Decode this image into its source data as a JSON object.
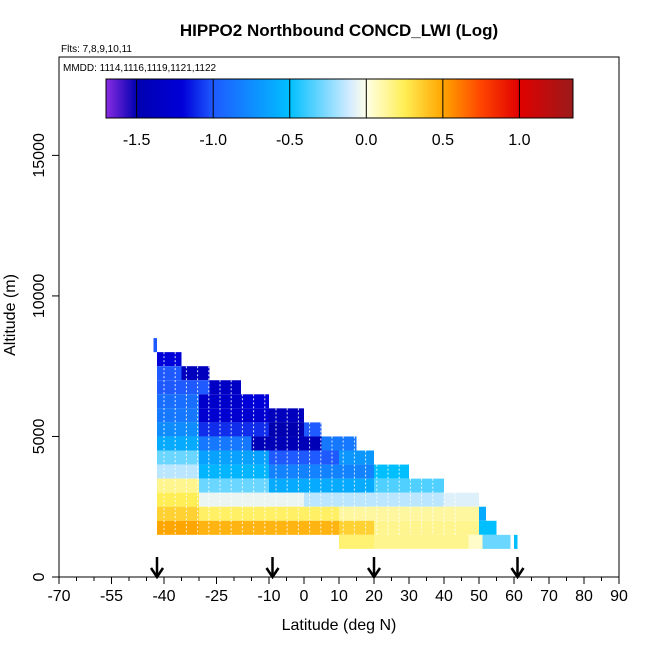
{
  "chart_data": {
    "type": "heatmap",
    "title": "HIPPO2 Northbound CONCD_LWI (Log)",
    "flights_label": "Flts: 7,8,9,10,11",
    "dates_label": "MMDD: 1114,1116,1119,1121,1122",
    "xlabel": "Latitude (deg N)",
    "ylabel": "Altitude (m)",
    "xlim": [
      -70,
      90
    ],
    "ylim": [
      0,
      18500
    ],
    "x_ticks": [
      -70,
      -55,
      -40,
      -25,
      -10,
      0,
      10,
      20,
      30,
      40,
      50,
      60,
      70,
      80,
      90
    ],
    "x_tick_labels": [
      "-70",
      "-55",
      "-40",
      "-25",
      "-10",
      "0",
      "10",
      "20",
      "30",
      "40",
      "50",
      "60",
      "70",
      "80",
      "90"
    ],
    "x_minor_ticks": [
      -65,
      -60,
      -50,
      -45,
      -35,
      -30,
      -20,
      -15,
      -5,
      5,
      15,
      25,
      35,
      45,
      55,
      65,
      75,
      85
    ],
    "y_ticks": [
      0,
      5000,
      10000,
      15000
    ],
    "y_tick_labels": [
      "0",
      "5000",
      "10000",
      "15000"
    ],
    "colorbar": {
      "min": -1.7,
      "max": 1.35,
      "ticks": [
        -1.5,
        -1.0,
        -0.5,
        0.0,
        0.5,
        1.0
      ],
      "tick_labels": [
        "-1.5",
        "-1.0",
        "-0.5",
        "0.0",
        "0.5",
        "1.0"
      ],
      "stops": [
        {
          "v": -1.7,
          "c": "#8a2be2"
        },
        {
          "v": -1.5,
          "c": "#0000b0"
        },
        {
          "v": -1.2,
          "c": "#0000d8"
        },
        {
          "v": -1.0,
          "c": "#1e5aff"
        },
        {
          "v": -0.5,
          "c": "#00bfff"
        },
        {
          "v": -0.1,
          "c": "#d6ecff"
        },
        {
          "v": 0.0,
          "c": "#ffffe6"
        },
        {
          "v": 0.25,
          "c": "#ffee55"
        },
        {
          "v": 0.5,
          "c": "#ffa500"
        },
        {
          "v": 0.75,
          "c": "#ff4500"
        },
        {
          "v": 1.0,
          "c": "#e00000"
        },
        {
          "v": 1.35,
          "c": "#9b1a1a"
        }
      ]
    },
    "flight_markers_lat": [
      -42,
      -9,
      20,
      61
    ],
    "cells": [
      {
        "x0": -43,
        "x1": -42,
        "y0": 8000,
        "y1": 8500,
        "v": -1.0
      },
      {
        "x0": -42,
        "x1": -35,
        "y0": 7500,
        "y1": 8000,
        "v": -1.2
      },
      {
        "x0": -42,
        "x1": -35,
        "y0": 7000,
        "y1": 7500,
        "v": -1.0
      },
      {
        "x0": -35,
        "x1": -27,
        "y0": 7000,
        "y1": 7500,
        "v": -1.4
      },
      {
        "x0": -42,
        "x1": -27,
        "y0": 6500,
        "y1": 7000,
        "v": -1.0
      },
      {
        "x0": -27,
        "x1": -18,
        "y0": 6500,
        "y1": 7000,
        "v": -1.35
      },
      {
        "x0": -42,
        "x1": -30,
        "y0": 6000,
        "y1": 6500,
        "v": -0.9
      },
      {
        "x0": -30,
        "x1": -18,
        "y0": 6000,
        "y1": 6500,
        "v": -1.3
      },
      {
        "x0": -18,
        "x1": -10,
        "y0": 6000,
        "y1": 6500,
        "v": -1.2
      },
      {
        "x0": -42,
        "x1": -30,
        "y0": 5500,
        "y1": 6000,
        "v": -0.85
      },
      {
        "x0": -30,
        "x1": -10,
        "y0": 5500,
        "y1": 6000,
        "v": -1.25
      },
      {
        "x0": -10,
        "x1": 0,
        "y0": 5500,
        "y1": 6000,
        "v": -1.4
      },
      {
        "x0": -42,
        "x1": -30,
        "y0": 5000,
        "y1": 5500,
        "v": -0.75
      },
      {
        "x0": -30,
        "x1": -10,
        "y0": 5000,
        "y1": 5500,
        "v": -1.1
      },
      {
        "x0": -10,
        "x1": 0,
        "y0": 5000,
        "y1": 5500,
        "v": -1.5
      },
      {
        "x0": 0,
        "x1": 5,
        "y0": 5000,
        "y1": 5500,
        "v": -1.0
      },
      {
        "x0": -42,
        "x1": -30,
        "y0": 4500,
        "y1": 5000,
        "v": -0.6
      },
      {
        "x0": -30,
        "x1": -15,
        "y0": 4500,
        "y1": 5000,
        "v": -0.85
      },
      {
        "x0": -15,
        "x1": 5,
        "y0": 4500,
        "y1": 5000,
        "v": -1.45
      },
      {
        "x0": 5,
        "x1": 15,
        "y0": 4500,
        "y1": 5000,
        "v": -0.85
      },
      {
        "x0": -42,
        "x1": -30,
        "y0": 4000,
        "y1": 4500,
        "v": -0.3
      },
      {
        "x0": -30,
        "x1": -10,
        "y0": 4000,
        "y1": 4500,
        "v": -0.65
      },
      {
        "x0": -10,
        "x1": 10,
        "y0": 4000,
        "y1": 4500,
        "v": -1.0
      },
      {
        "x0": 10,
        "x1": 20,
        "y0": 4000,
        "y1": 4500,
        "v": -0.7
      },
      {
        "x0": -42,
        "x1": -30,
        "y0": 3500,
        "y1": 4000,
        "v": -0.15
      },
      {
        "x0": -30,
        "x1": -10,
        "y0": 3500,
        "y1": 4000,
        "v": -0.55
      },
      {
        "x0": -10,
        "x1": 20,
        "y0": 3500,
        "y1": 4000,
        "v": -0.8
      },
      {
        "x0": 20,
        "x1": 30,
        "y0": 3500,
        "y1": 4000,
        "v": -0.5
      },
      {
        "x0": -42,
        "x1": -30,
        "y0": 3000,
        "y1": 3500,
        "v": 0.15
      },
      {
        "x0": -30,
        "x1": -10,
        "y0": 3000,
        "y1": 3500,
        "v": -0.3
      },
      {
        "x0": -10,
        "x1": 20,
        "y0": 3000,
        "y1": 3500,
        "v": -0.6
      },
      {
        "x0": 20,
        "x1": 40,
        "y0": 3000,
        "y1": 3500,
        "v": -0.35
      },
      {
        "x0": -42,
        "x1": -30,
        "y0": 2500,
        "y1": 3000,
        "v": 0.25
      },
      {
        "x0": -30,
        "x1": 0,
        "y0": 2500,
        "y1": 3000,
        "v": -0.05
      },
      {
        "x0": 0,
        "x1": 40,
        "y0": 2500,
        "y1": 3000,
        "v": -0.15
      },
      {
        "x0": 40,
        "x1": 50,
        "y0": 2500,
        "y1": 3000,
        "v": -0.08
      },
      {
        "x0": -42,
        "x1": -30,
        "y0": 2000,
        "y1": 2500,
        "v": 0.35
      },
      {
        "x0": -30,
        "x1": 10,
        "y0": 2000,
        "y1": 2500,
        "v": 0.22
      },
      {
        "x0": 10,
        "x1": 50,
        "y0": 2000,
        "y1": 2500,
        "v": 0.12
      },
      {
        "x0": 50,
        "x1": 52,
        "y0": 2000,
        "y1": 2500,
        "v": -0.6
      },
      {
        "x0": -42,
        "x1": -30,
        "y0": 1500,
        "y1": 2000,
        "v": 0.5
      },
      {
        "x0": -30,
        "x1": 10,
        "y0": 1500,
        "y1": 2000,
        "v": 0.45
      },
      {
        "x0": 10,
        "x1": 20,
        "y0": 1500,
        "y1": 2000,
        "v": 0.35
      },
      {
        "x0": 20,
        "x1": 50,
        "y0": 1500,
        "y1": 2000,
        "v": 0.15
      },
      {
        "x0": 50,
        "x1": 55,
        "y0": 1500,
        "y1": 2000,
        "v": -0.5
      },
      {
        "x0": 10,
        "x1": 20,
        "y0": 1000,
        "y1": 1500,
        "v": 0.2
      },
      {
        "x0": 20,
        "x1": 47,
        "y0": 1000,
        "y1": 1500,
        "v": 0.15
      },
      {
        "x0": 47,
        "x1": 51,
        "y0": 1000,
        "y1": 1500,
        "v": 0.05
      },
      {
        "x0": 51,
        "x1": 59,
        "y0": 1000,
        "y1": 1500,
        "v": -0.3
      },
      {
        "x0": 60,
        "x1": 61,
        "y0": 1000,
        "y1": 1500,
        "v": -0.5
      }
    ]
  }
}
